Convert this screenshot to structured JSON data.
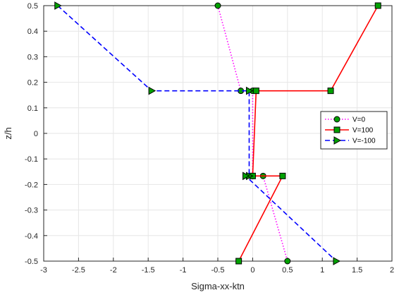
{
  "chart_data": {
    "type": "line",
    "title": "",
    "xlabel": "Sigma-xx-ktn",
    "ylabel": "z/h",
    "xlim": [
      -3,
      2
    ],
    "ylim": [
      -0.5,
      0.5
    ],
    "xticks": [
      "-3",
      "-2.5",
      "-2",
      "-1.5",
      "-1",
      "-0.5",
      "0",
      "0.5",
      "1",
      "1.5",
      "2"
    ],
    "yticks": [
      "-0.5",
      "-0.4",
      "-0.3",
      "-0.2",
      "-0.1",
      "0",
      "0.1",
      "0.2",
      "0.3",
      "0.4",
      "0.5"
    ],
    "grid": true,
    "legend_position": "right",
    "series": [
      {
        "name": "V=0",
        "line_color": "#ff00ff",
        "line_style": "dotted",
        "marker": "circle",
        "marker_fill": "#00a000",
        "x": [
          -0.5,
          -0.17,
          0.0,
          0.0,
          0.15,
          0.5
        ],
        "y": [
          0.5,
          0.1667,
          0.1667,
          -0.1667,
          -0.1667,
          -0.5
        ]
      },
      {
        "name": "V=100",
        "line_color": "#ff0000",
        "line_style": "solid",
        "marker": "square",
        "marker_fill": "#00a000",
        "x": [
          1.8,
          1.12,
          0.05,
          0.0,
          0.43,
          -0.2
        ],
        "y": [
          0.5,
          0.1667,
          0.1667,
          -0.1667,
          -0.1667,
          -0.5
        ]
      },
      {
        "name": "V=-100",
        "line_color": "#0000ff",
        "line_style": "dashed",
        "marker": "triangle-right",
        "marker_fill": "#00a000",
        "x": [
          -2.8,
          -1.45,
          -0.05,
          -0.05,
          -0.1,
          1.2
        ],
        "y": [
          0.5,
          0.1667,
          0.1667,
          -0.1667,
          -0.1667,
          -0.5
        ]
      }
    ]
  }
}
